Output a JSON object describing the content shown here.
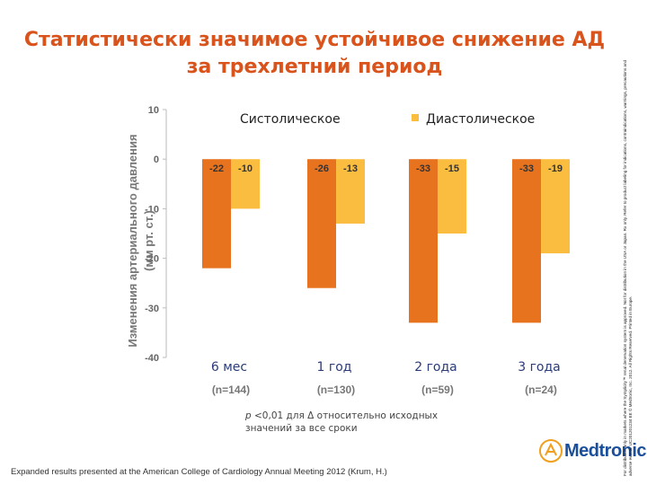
{
  "title": "Статистически значимое устойчивое снижение АД за трехлетний период",
  "chart_data": {
    "type": "bar",
    "ylabel_line1": "Изменения артериального давления",
    "ylabel_line2": "(мм рт. ст.)",
    "ylim": [
      -40,
      10
    ],
    "yticks": [
      10,
      0,
      -10,
      -20,
      -30,
      -40
    ],
    "categories": [
      "6 мес",
      "1 год",
      "2 года",
      "3 года"
    ],
    "n_labels": [
      "(n=144)",
      "(n=130)",
      "(n=59)",
      "(n=24)"
    ],
    "series": [
      {
        "name": "Систолическое",
        "values": [
          -22,
          -26,
          -33,
          -33
        ],
        "color": "#e8731e"
      },
      {
        "name": "Диастолическое",
        "values": [
          -10,
          -13,
          -15,
          -19
        ],
        "color": "#fbbd40"
      }
    ],
    "bar_labels": [
      [
        "-22",
        "-26",
        "-33",
        "-33"
      ],
      [
        "-10",
        "-13",
        "-15",
        "-19"
      ]
    ],
    "legend_position": "top"
  },
  "footnote": {
    "p": "p",
    "text": " <0,01 для Δ относительно исходных значений за все сроки"
  },
  "bottom_note": "Expanded results presented at the American College of Cardiology Annual Meeting 2012 (Krum, H.)",
  "logo_text": "Medtronic",
  "side_note": "For distribution only in markets where the Symplicity™ renal denervation system is approved. Not for distribution in the USA or Japan. Rx only. Refer to product labeling for indications, contraindications, warnings, precautions and adverse events. UC201201234 EE © Medtronic, Inc. 2012. All Rights Reserved. Printed in Europe."
}
